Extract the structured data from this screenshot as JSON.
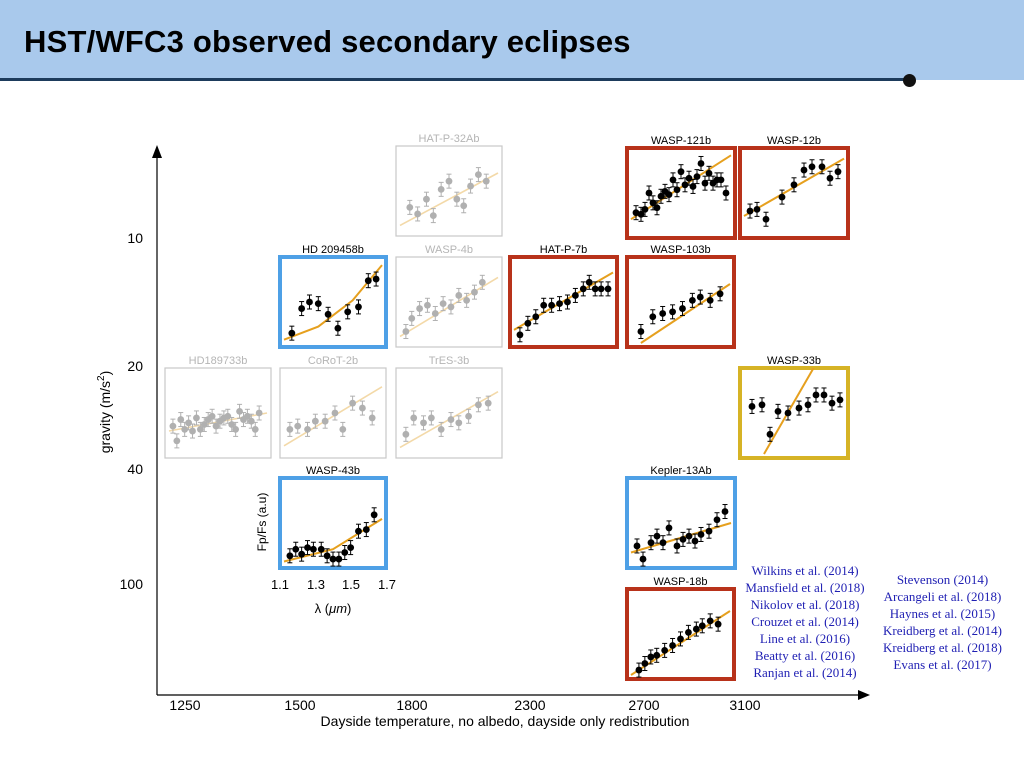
{
  "slide": {
    "title": "HST/WFC3 observed secondary eclipses"
  },
  "chart_data": {
    "type": "scatter",
    "title": "HST/WFC3 observed secondary eclipses",
    "xlabel": "Dayside temperature, no albedo, dayside only redistribution",
    "ylabel_main": "gravity (m/s",
    "ylabel_sup": "2",
    "ylabel_close": ")",
    "x_ticks": [
      "1250",
      "1500",
      "1800",
      "2300",
      "2700",
      "3100"
    ],
    "y_ticks": [
      "10",
      "20",
      "40",
      "100"
    ],
    "inset_xlabel": "λ (",
    "inset_xlabel_unit": "μm",
    "inset_xlabel_close": ")",
    "inset_ylabel": "Fp/Fs (a.u)",
    "inset_x_ticks": [
      "1.1",
      "1.3",
      "1.5",
      "1.7"
    ],
    "colors": {
      "red": "#b8321a",
      "blue": "#4ea0e6",
      "yellow": "#d6b325",
      "fit": "#e6a01e",
      "fit_faded": "#f3d9a8",
      "point": "#000000",
      "point_faded": "#b0b0b0"
    },
    "panels": [
      {
        "name": "HAT-P-32Ab",
        "frame": "none",
        "faded": true,
        "points": [
          [
            0.1,
            0.3
          ],
          [
            0.18,
            0.22
          ],
          [
            0.27,
            0.4
          ],
          [
            0.34,
            0.2
          ],
          [
            0.42,
            0.52
          ],
          [
            0.5,
            0.62
          ],
          [
            0.58,
            0.4
          ],
          [
            0.65,
            0.32
          ],
          [
            0.72,
            0.56
          ],
          [
            0.8,
            0.7
          ],
          [
            0.88,
            0.62
          ]
        ],
        "fit": [
          [
            0,
            0.08
          ],
          [
            1,
            0.72
          ]
        ]
      },
      {
        "name": "WASP-121b",
        "frame": "red",
        "faded": false,
        "points": [
          [
            0.05,
            0.26
          ],
          [
            0.1,
            0.24
          ],
          [
            0.14,
            0.3
          ],
          [
            0.18,
            0.5
          ],
          [
            0.22,
            0.38
          ],
          [
            0.26,
            0.32
          ],
          [
            0.3,
            0.46
          ],
          [
            0.34,
            0.52
          ],
          [
            0.38,
            0.48
          ],
          [
            0.42,
            0.66
          ],
          [
            0.46,
            0.54
          ],
          [
            0.5,
            0.76
          ],
          [
            0.54,
            0.6
          ],
          [
            0.58,
            0.68
          ],
          [
            0.62,
            0.58
          ],
          [
            0.66,
            0.7
          ],
          [
            0.7,
            0.86
          ],
          [
            0.74,
            0.62
          ],
          [
            0.78,
            0.74
          ],
          [
            0.82,
            0.62
          ],
          [
            0.86,
            0.66
          ],
          [
            0.9,
            0.66
          ],
          [
            0.95,
            0.5
          ]
        ],
        "fit": [
          [
            0,
            0.18
          ],
          [
            1,
            0.96
          ]
        ]
      },
      {
        "name": "WASP-12b",
        "frame": "red",
        "faded": false,
        "points": [
          [
            0.06,
            0.28
          ],
          [
            0.13,
            0.3
          ],
          [
            0.22,
            0.18
          ],
          [
            0.38,
            0.45
          ],
          [
            0.5,
            0.6
          ],
          [
            0.6,
            0.78
          ],
          [
            0.68,
            0.82
          ],
          [
            0.78,
            0.82
          ],
          [
            0.86,
            0.68
          ],
          [
            0.94,
            0.76
          ]
        ],
        "fit": [
          [
            0,
            0.22
          ],
          [
            1,
            0.92
          ]
        ]
      },
      {
        "name": "HD 209458b",
        "frame": "blue",
        "faded": false,
        "points": [
          [
            0.08,
            0.12
          ],
          [
            0.18,
            0.42
          ],
          [
            0.26,
            0.5
          ],
          [
            0.35,
            0.48
          ],
          [
            0.45,
            0.35
          ],
          [
            0.55,
            0.18
          ],
          [
            0.65,
            0.38
          ],
          [
            0.76,
            0.44
          ],
          [
            0.86,
            0.76
          ],
          [
            0.94,
            0.78
          ]
        ],
        "fit": [
          [
            0,
            0.04
          ],
          [
            0.35,
            0.2
          ],
          [
            0.7,
            0.52
          ],
          [
            1,
            0.95
          ]
        ]
      },
      {
        "name": "WASP-4b",
        "frame": "none",
        "faded": true,
        "points": [
          [
            0.06,
            0.14
          ],
          [
            0.12,
            0.3
          ],
          [
            0.2,
            0.42
          ],
          [
            0.28,
            0.46
          ],
          [
            0.36,
            0.36
          ],
          [
            0.44,
            0.48
          ],
          [
            0.52,
            0.44
          ],
          [
            0.6,
            0.58
          ],
          [
            0.68,
            0.52
          ],
          [
            0.76,
            0.62
          ],
          [
            0.84,
            0.74
          ]
        ],
        "fit": [
          [
            0,
            0.08
          ],
          [
            1,
            0.8
          ]
        ]
      },
      {
        "name": "HAT-P-7b",
        "frame": "red",
        "faded": false,
        "points": [
          [
            0.06,
            0.1
          ],
          [
            0.14,
            0.24
          ],
          [
            0.22,
            0.32
          ],
          [
            0.3,
            0.46
          ],
          [
            0.38,
            0.46
          ],
          [
            0.46,
            0.48
          ],
          [
            0.54,
            0.5
          ],
          [
            0.62,
            0.58
          ],
          [
            0.7,
            0.66
          ],
          [
            0.76,
            0.74
          ],
          [
            0.82,
            0.66
          ],
          [
            0.88,
            0.66
          ],
          [
            0.95,
            0.66
          ]
        ],
        "fit": [
          [
            0,
            0.16
          ],
          [
            1,
            0.86
          ]
        ]
      },
      {
        "name": "WASP-103b",
        "frame": "red",
        "faded": false,
        "points": [
          [
            0.1,
            0.14
          ],
          [
            0.22,
            0.32
          ],
          [
            0.32,
            0.36
          ],
          [
            0.42,
            0.38
          ],
          [
            0.52,
            0.42
          ],
          [
            0.62,
            0.52
          ],
          [
            0.7,
            0.56
          ],
          [
            0.8,
            0.52
          ],
          [
            0.9,
            0.6
          ]
        ],
        "fit": [
          [
            0.1,
            0
          ],
          [
            1,
            0.72
          ]
        ]
      },
      {
        "name": "HD189733b",
        "frame": "none",
        "faded": true,
        "points": [
          [
            0.04,
            0.34
          ],
          [
            0.08,
            0.16
          ],
          [
            0.12,
            0.42
          ],
          [
            0.16,
            0.3
          ],
          [
            0.2,
            0.38
          ],
          [
            0.24,
            0.28
          ],
          [
            0.28,
            0.44
          ],
          [
            0.32,
            0.3
          ],
          [
            0.36,
            0.36
          ],
          [
            0.4,
            0.42
          ],
          [
            0.44,
            0.46
          ],
          [
            0.48,
            0.34
          ],
          [
            0.52,
            0.4
          ],
          [
            0.56,
            0.44
          ],
          [
            0.6,
            0.46
          ],
          [
            0.64,
            0.36
          ],
          [
            0.68,
            0.3
          ],
          [
            0.72,
            0.52
          ],
          [
            0.76,
            0.42
          ],
          [
            0.8,
            0.46
          ],
          [
            0.84,
            0.4
          ],
          [
            0.88,
            0.3
          ],
          [
            0.92,
            0.5
          ]
        ],
        "fit": [
          [
            0,
            0.28
          ],
          [
            1,
            0.5
          ]
        ]
      },
      {
        "name": "CoRoT-2b",
        "frame": "none",
        "faded": true,
        "points": [
          [
            0.06,
            0.3
          ],
          [
            0.14,
            0.34
          ],
          [
            0.24,
            0.3
          ],
          [
            0.32,
            0.4
          ],
          [
            0.42,
            0.4
          ],
          [
            0.52,
            0.5
          ],
          [
            0.6,
            0.3
          ],
          [
            0.7,
            0.62
          ],
          [
            0.8,
            0.56
          ],
          [
            0.9,
            0.44
          ]
        ],
        "fit": [
          [
            0,
            0.1
          ],
          [
            1,
            0.82
          ]
        ]
      },
      {
        "name": "TrES-3b",
        "frame": "none",
        "faded": true,
        "points": [
          [
            0.06,
            0.24
          ],
          [
            0.14,
            0.44
          ],
          [
            0.24,
            0.38
          ],
          [
            0.32,
            0.44
          ],
          [
            0.42,
            0.3
          ],
          [
            0.52,
            0.42
          ],
          [
            0.6,
            0.38
          ],
          [
            0.7,
            0.46
          ],
          [
            0.8,
            0.6
          ],
          [
            0.9,
            0.62
          ]
        ],
        "fit": [
          [
            0,
            0.08
          ],
          [
            1,
            0.76
          ]
        ]
      },
      {
        "name": "WASP-33b",
        "frame": "yellow",
        "faded": false,
        "points": [
          [
            0.08,
            0.58
          ],
          [
            0.18,
            0.6
          ],
          [
            0.26,
            0.24
          ],
          [
            0.34,
            0.52
          ],
          [
            0.44,
            0.5
          ],
          [
            0.55,
            0.56
          ],
          [
            0.64,
            0.6
          ],
          [
            0.72,
            0.72
          ],
          [
            0.8,
            0.72
          ],
          [
            0.88,
            0.62
          ],
          [
            0.96,
            0.66
          ]
        ],
        "fit": [
          [
            0.2,
            0
          ],
          [
            0.72,
            1.1
          ]
        ]
      },
      {
        "name": "WASP-43b",
        "frame": "blue",
        "faded": false,
        "points": [
          [
            0.06,
            0.1
          ],
          [
            0.12,
            0.18
          ],
          [
            0.18,
            0.12
          ],
          [
            0.24,
            0.2
          ],
          [
            0.3,
            0.18
          ],
          [
            0.38,
            0.18
          ],
          [
            0.44,
            0.1
          ],
          [
            0.5,
            0.06
          ],
          [
            0.56,
            0.06
          ],
          [
            0.62,
            0.14
          ],
          [
            0.68,
            0.2
          ],
          [
            0.76,
            0.4
          ],
          [
            0.84,
            0.42
          ],
          [
            0.92,
            0.6
          ]
        ],
        "fit": [
          [
            0,
            0.03
          ],
          [
            0.5,
            0.18
          ],
          [
            1,
            0.55
          ]
        ]
      },
      {
        "name": "Kepler-13Ab",
        "frame": "blue",
        "faded": false,
        "points": [
          [
            0.06,
            0.22
          ],
          [
            0.12,
            0.06
          ],
          [
            0.2,
            0.26
          ],
          [
            0.26,
            0.34
          ],
          [
            0.32,
            0.26
          ],
          [
            0.38,
            0.44
          ],
          [
            0.46,
            0.22
          ],
          [
            0.52,
            0.3
          ],
          [
            0.58,
            0.34
          ],
          [
            0.64,
            0.28
          ],
          [
            0.7,
            0.36
          ],
          [
            0.78,
            0.4
          ],
          [
            0.86,
            0.54
          ],
          [
            0.94,
            0.64
          ]
        ],
        "fit": [
          [
            0,
            0.14
          ],
          [
            1,
            0.5
          ]
        ]
      },
      {
        "name": "WASP-18b",
        "frame": "red",
        "faded": false,
        "points": [
          [
            0.08,
            0.06
          ],
          [
            0.14,
            0.14
          ],
          [
            0.2,
            0.22
          ],
          [
            0.26,
            0.24
          ],
          [
            0.34,
            0.3
          ],
          [
            0.42,
            0.36
          ],
          [
            0.5,
            0.44
          ],
          [
            0.58,
            0.52
          ],
          [
            0.66,
            0.56
          ],
          [
            0.72,
            0.6
          ],
          [
            0.8,
            0.66
          ],
          [
            0.88,
            0.62
          ]
        ],
        "fit": [
          [
            0,
            0
          ],
          [
            1,
            0.78
          ]
        ]
      }
    ]
  },
  "references": {
    "left": [
      "Wilkins et al. (2014)",
      "Mansfield et al. (2018)",
      "Nikolov et al. (2018)",
      "Crouzet et al. (2014)",
      "Line et al. (2016)",
      "Beatty et al. (2016)",
      "Ranjan et al. (2014)"
    ],
    "right": [
      "Stevenson (2014)",
      "Arcangeli et al. (2018)",
      "Haynes et al. (2015)",
      "Kreidberg et al. (2014)",
      "Kreidberg et al. (2018)",
      "Evans et al. (2017)"
    ]
  }
}
